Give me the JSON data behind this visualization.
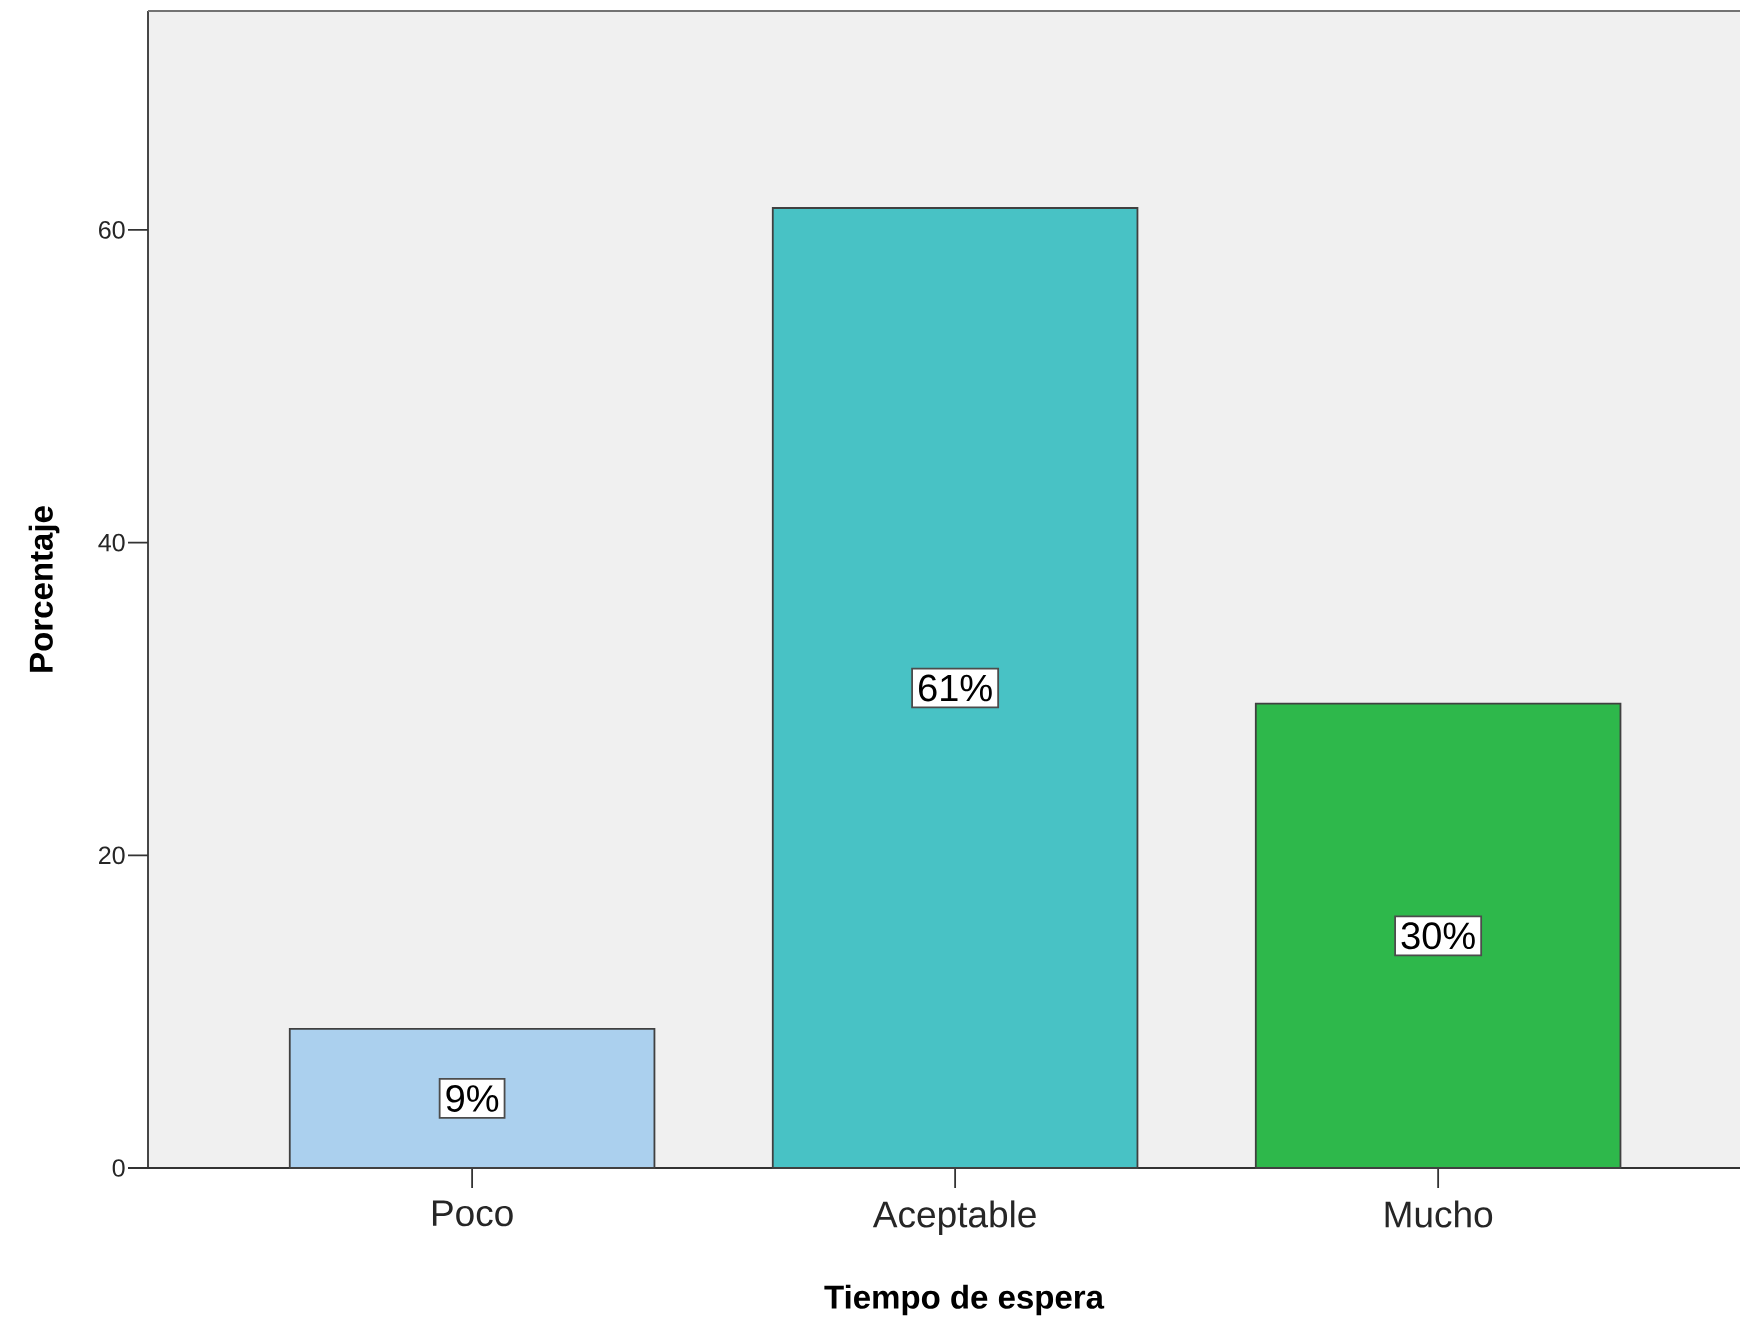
{
  "chart_data": {
    "type": "bar",
    "xlabel": "Tiempo de espera",
    "ylabel": "Porcentaje",
    "categories": [
      "Poco",
      "Aceptable",
      "Mucho"
    ],
    "values": [
      8.9,
      61.4,
      29.7
    ],
    "colors": [
      "#abd0ee",
      "#48c2c5",
      "#2eb84b"
    ],
    "value_labels": [
      "9%",
      "61%",
      "30%"
    ],
    "ylim": [
      0,
      74
    ],
    "yticks": [
      0,
      20,
      40,
      60
    ]
  }
}
